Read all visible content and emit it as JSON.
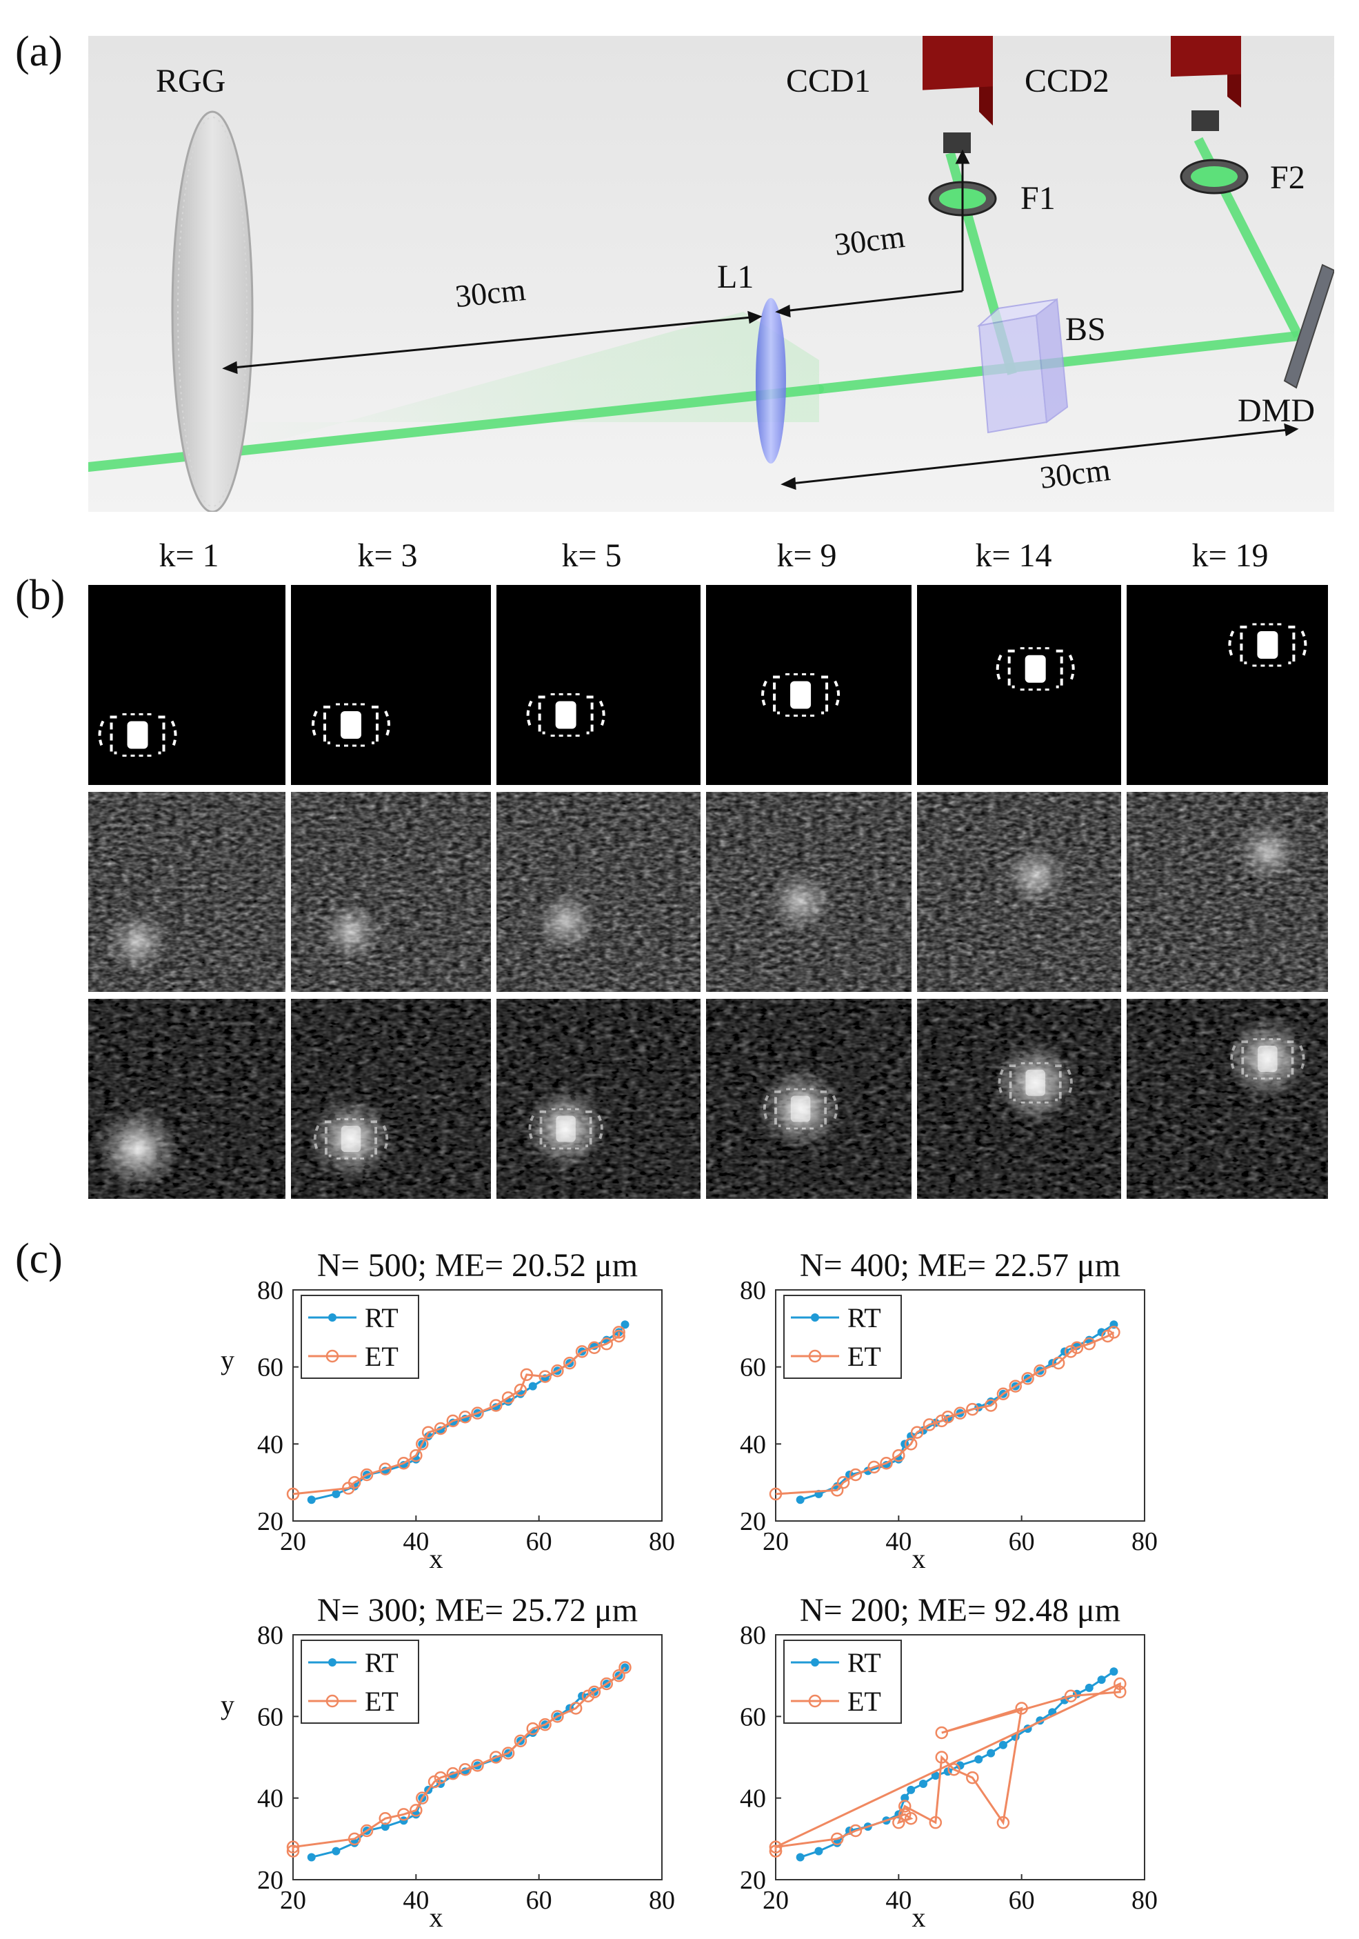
{
  "panel_labels": {
    "a": "(a)",
    "b": "(b)",
    "c": "(c)"
  },
  "setup": {
    "components": {
      "rgg": "RGG",
      "ccd1": "CCD1",
      "ccd2": "CCD2",
      "f1": "F1",
      "f2": "F2",
      "l1": "L1",
      "bs": "BS",
      "dmd": "DMD"
    },
    "distances": {
      "rgg_l1": "30cm",
      "l1_ccd1": "30cm",
      "l1_dmd": "30cm"
    },
    "colors": {
      "beam": "#5de07a",
      "camera": "#8b1010",
      "background": "#e9e9e9"
    }
  },
  "frames": {
    "k_labels": [
      "k= 1",
      "k= 3",
      "k= 5",
      "k= 9",
      "k= 14",
      "k= 19"
    ]
  },
  "chart_data": [
    {
      "type": "line",
      "title": "N= 500; ME= 20.52 μm",
      "xlabel": "x",
      "ylabel": "y",
      "xlim": [
        20,
        80
      ],
      "ylim": [
        20,
        80
      ],
      "xticks": [
        "20",
        "40",
        "60",
        "80"
      ],
      "yticks": [
        "20",
        "40",
        "60",
        "80"
      ],
      "legend_position": "top-left",
      "series": [
        {
          "name": "RT",
          "color": "#1f9ad6",
          "marker": "dot",
          "x": [
            23,
            27,
            30,
            32,
            35,
            38,
            40,
            41,
            42,
            44,
            46,
            48,
            50,
            53,
            55,
            57,
            59,
            61,
            63,
            65,
            67,
            69,
            71,
            73,
            74
          ],
          "y": [
            25.5,
            27,
            29,
            32,
            33,
            34.5,
            36,
            40,
            42,
            43.5,
            45.5,
            46.5,
            48,
            49.5,
            51,
            53,
            55,
            57,
            59,
            61,
            64,
            65.5,
            67,
            69,
            71
          ]
        },
        {
          "name": "ET",
          "color": "#f08860",
          "marker": "circle",
          "x": [
            20,
            29,
            30,
            32,
            35,
            38,
            40,
            41,
            42,
            44,
            46,
            48,
            50,
            53,
            55,
            57,
            58,
            61,
            63,
            65,
            67,
            69,
            71,
            73,
            73
          ],
          "y": [
            27,
            28.5,
            30,
            32,
            33.5,
            35,
            37,
            40,
            43,
            44,
            46,
            47,
            48,
            50,
            52,
            54,
            58,
            57.5,
            59,
            61,
            64,
            65,
            66,
            68,
            69
          ]
        }
      ]
    },
    {
      "type": "line",
      "title": "N= 400; ME= 22.57 μm",
      "xlabel": "x",
      "ylabel": "",
      "xlim": [
        20,
        80
      ],
      "ylim": [
        20,
        80
      ],
      "xticks": [
        "20",
        "40",
        "60",
        "80"
      ],
      "yticks": [
        "20",
        "40",
        "60",
        "80"
      ],
      "legend_position": "top-left",
      "series": [
        {
          "name": "RT",
          "color": "#1f9ad6",
          "marker": "dot",
          "x": [
            24,
            27,
            30,
            32,
            35,
            38,
            40,
            41,
            42,
            44,
            46,
            48,
            50,
            53,
            55,
            57,
            59,
            61,
            63,
            65,
            67,
            69,
            71,
            73,
            75
          ],
          "y": [
            25.5,
            27,
            29,
            32,
            33,
            34.5,
            36,
            40,
            42,
            43.5,
            45.5,
            46.5,
            48,
            49.5,
            51,
            53,
            55,
            57,
            59,
            61,
            64,
            65.5,
            67,
            69,
            71
          ]
        },
        {
          "name": "ET",
          "color": "#f08860",
          "marker": "circle",
          "x": [
            20,
            30,
            31,
            33,
            36,
            38,
            40,
            42,
            43,
            45,
            47,
            48,
            50,
            52,
            55,
            57,
            59,
            61,
            63,
            66,
            68,
            69,
            71,
            74,
            75
          ],
          "y": [
            27,
            28,
            30,
            32,
            34,
            35,
            37,
            40,
            43,
            45,
            46,
            47,
            48,
            49,
            50,
            53,
            55,
            57,
            59,
            61,
            64,
            65,
            66,
            68,
            69
          ]
        }
      ]
    },
    {
      "type": "line",
      "title": "N= 300; ME= 25.72 μm",
      "xlabel": "x",
      "ylabel": "y",
      "xlim": [
        20,
        80
      ],
      "ylim": [
        20,
        80
      ],
      "xticks": [
        "20",
        "40",
        "60",
        "80"
      ],
      "yticks": [
        "20",
        "40",
        "60",
        "80"
      ],
      "legend_position": "top-left",
      "series": [
        {
          "name": "RT",
          "color": "#1f9ad6",
          "marker": "dot",
          "x": [
            23,
            27,
            30,
            32,
            35,
            38,
            40,
            41,
            42,
            44,
            46,
            48,
            50,
            53,
            55,
            57,
            59,
            61,
            63,
            65,
            67,
            69,
            71,
            73,
            74
          ],
          "y": [
            25.5,
            27,
            29,
            32,
            33,
            34.5,
            36,
            40,
            42,
            43.5,
            45.5,
            46.5,
            48,
            49.5,
            51,
            54,
            56,
            58,
            60,
            62,
            65,
            66,
            68,
            70,
            72
          ]
        },
        {
          "name": "ET",
          "color": "#f08860",
          "marker": "circle",
          "x": [
            20,
            20,
            30,
            32,
            35,
            38,
            40,
            41,
            43,
            44,
            46,
            48,
            50,
            53,
            55,
            57,
            59,
            61,
            63,
            66,
            68,
            69,
            71,
            73,
            74
          ],
          "y": [
            27,
            28,
            30,
            32,
            35,
            36,
            37,
            40,
            44,
            45,
            46,
            47,
            48,
            50,
            51,
            54,
            57,
            58,
            60,
            62,
            65,
            66,
            68,
            70,
            72
          ]
        }
      ]
    },
    {
      "type": "line",
      "title": "N= 200; ME= 92.48 μm",
      "xlabel": "x",
      "ylabel": "",
      "xlim": [
        20,
        80
      ],
      "ylim": [
        20,
        80
      ],
      "xticks": [
        "20",
        "40",
        "60",
        "80"
      ],
      "yticks": [
        "20",
        "40",
        "60",
        "80"
      ],
      "legend_position": "top-left",
      "series": [
        {
          "name": "RT",
          "color": "#1f9ad6",
          "marker": "dot",
          "x": [
            24,
            27,
            30,
            32,
            35,
            38,
            40,
            41,
            42,
            44,
            46,
            48,
            50,
            53,
            55,
            57,
            59,
            61,
            63,
            65,
            67,
            69,
            71,
            73,
            75
          ],
          "y": [
            25.5,
            27,
            29,
            32,
            33,
            34.5,
            36,
            40,
            42,
            43.5,
            45.5,
            46.5,
            48,
            49.5,
            51,
            53,
            55,
            57,
            59,
            61,
            64,
            65.5,
            67,
            69,
            71
          ]
        },
        {
          "name": "ET",
          "color": "#f08860",
          "marker": "circle",
          "x": [
            20,
            20,
            30,
            33,
            41,
            42,
            40,
            41,
            46,
            47,
            49,
            52,
            57,
            60,
            47,
            68,
            76,
            76,
            20,
            20
          ],
          "y": [
            27,
            28,
            30,
            32,
            36,
            35,
            34,
            38,
            34,
            50,
            47,
            45,
            34,
            62,
            56,
            65,
            66,
            68,
            28,
            27
          ]
        }
      ]
    }
  ]
}
